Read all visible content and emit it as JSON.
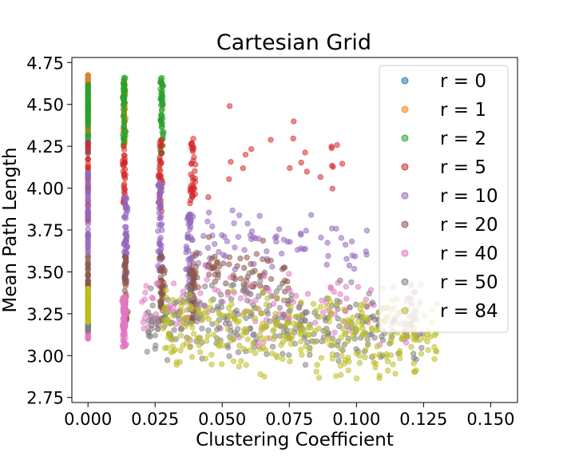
{
  "chart_data": {
    "type": "scatter",
    "title": "Cartesian Grid",
    "xlabel": "Clustering Coefficient",
    "ylabel": "Mean Path Length",
    "xlim": [
      -0.006,
      0.16
    ],
    "ylim": [
      2.72,
      4.78
    ],
    "xticks": [
      0.0,
      0.025,
      0.05,
      0.075,
      0.1,
      0.125,
      0.15
    ],
    "xtick_labels": [
      "0.000",
      "0.025",
      "0.050",
      "0.075",
      "0.100",
      "0.125",
      "0.150"
    ],
    "yticks": [
      2.75,
      3.0,
      3.25,
      3.5,
      3.75,
      4.0,
      4.25,
      4.5,
      4.75
    ],
    "ytick_labels": [
      "2.75",
      "3.00",
      "3.25",
      "3.50",
      "3.75",
      "4.00",
      "4.25",
      "4.50",
      "4.75"
    ],
    "grid": false,
    "legend_position": "top-right",
    "marker_alpha": 0.55,
    "series": [
      {
        "name": "r = 0",
        "color": "#1f77b4",
        "n": 60,
        "columns": [
          [
            0.0,
            0.0,
            4.2,
            4.68
          ]
        ],
        "cloud": null
      },
      {
        "name": "r = 1",
        "color": "#ff7f0e",
        "n": 90,
        "columns": [
          [
            0.0,
            0.0,
            4.3,
            4.68
          ],
          [
            0.0135,
            0.0006,
            4.25,
            4.65
          ]
        ],
        "cloud": null
      },
      {
        "name": "r = 2",
        "color": "#2ca02c",
        "n": 170,
        "columns": [
          [
            0.0,
            0.0,
            4.3,
            4.62
          ],
          [
            0.0135,
            0.0007,
            4.25,
            4.66
          ],
          [
            0.0275,
            0.0008,
            4.2,
            4.66
          ]
        ],
        "cloud": null
      },
      {
        "name": "r = 5",
        "color": "#d62728",
        "n": 140,
        "columns": [
          [
            0.0,
            0.0,
            3.8,
            4.3
          ],
          [
            0.0135,
            0.0008,
            3.9,
            4.25
          ],
          [
            0.027,
            0.001,
            3.85,
            4.3
          ],
          [
            0.039,
            0.0015,
            3.9,
            4.3
          ]
        ],
        "cloud": [
          0.04,
          0.095,
          3.85,
          4.6,
          22
        ]
      },
      {
        "name": "r = 10",
        "color": "#9467bd",
        "n": 220,
        "columns": [
          [
            0.0,
            0.0,
            3.6,
            4.1
          ],
          [
            0.014,
            0.0009,
            3.45,
            3.95
          ],
          [
            0.027,
            0.0012,
            3.5,
            4.05
          ],
          [
            0.038,
            0.002,
            3.35,
            3.85
          ]
        ],
        "cloud": [
          0.04,
          0.105,
          3.45,
          3.95,
          70
        ]
      },
      {
        "name": "r = 20",
        "color": "#8c564b",
        "n": 190,
        "columns": [
          [
            0.0,
            0.0,
            3.25,
            3.6
          ],
          [
            0.014,
            0.001,
            3.2,
            3.6
          ],
          [
            0.0275,
            0.0015,
            3.2,
            3.6
          ],
          [
            0.039,
            0.002,
            3.2,
            3.55
          ]
        ],
        "cloud": [
          0.04,
          0.075,
          3.25,
          3.75,
          70
        ]
      },
      {
        "name": "r = 40",
        "color": "#e377c2",
        "n": 190,
        "columns": [
          [
            0.0,
            0.0,
            3.1,
            3.35
          ],
          [
            0.0135,
            0.001,
            3.05,
            3.35
          ]
        ],
        "cloud": [
          0.02,
          0.125,
          3.0,
          3.6,
          150
        ]
      },
      {
        "name": "r = 50",
        "color": "#7f7f7f",
        "n": 320,
        "columns": [
          [
            0.0,
            0.0,
            3.15,
            3.3
          ]
        ],
        "cloud": [
          0.022,
          0.125,
          2.9,
          3.55,
          300
        ]
      },
      {
        "name": "r = 84",
        "color": "#bcbd22",
        "n": 330,
        "columns": [
          [
            0.0,
            0.0,
            3.2,
            3.4
          ]
        ],
        "cloud": [
          0.028,
          0.13,
          2.82,
          3.5,
          320
        ]
      }
    ]
  }
}
